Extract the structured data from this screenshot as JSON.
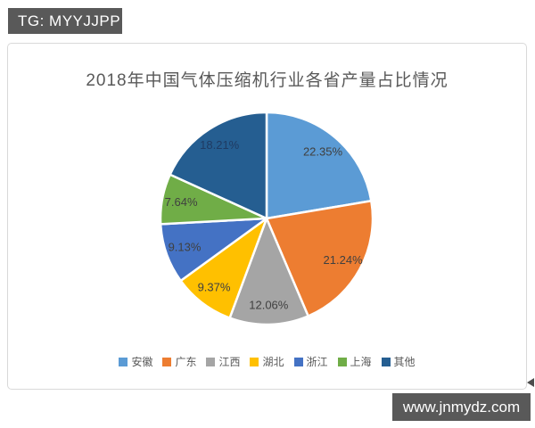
{
  "header": {
    "tag_label": "TG: MYYJJPP"
  },
  "footer": {
    "site_label": "www.jnmydz.com"
  },
  "colors": {
    "badge_background": "#595959",
    "badge_text": "#ffffff",
    "chart_border": "#d9d9d9",
    "title_text": "#595959",
    "legend_text": "#595959",
    "slice_label_text": "#404040",
    "slice_separator": "#ffffff"
  },
  "chart_data": {
    "type": "pie",
    "title": "2018年中国气体压缩机行业各省产量占比情况",
    "start_angle_deg": 0,
    "direction": "clockwise",
    "legend_position": "bottom",
    "categories": [
      "安徽",
      "广东",
      "江西",
      "湖北",
      "浙江",
      "上海",
      "其他"
    ],
    "values": [
      22.35,
      21.24,
      12.06,
      9.37,
      9.13,
      7.64,
      18.21
    ],
    "slices": [
      {
        "label": "安徽",
        "value": 22.35,
        "display": "22.35%",
        "color": "#5B9BD5"
      },
      {
        "label": "广东",
        "value": 21.24,
        "display": "21.24%",
        "color": "#ED7D31"
      },
      {
        "label": "江西",
        "value": 12.06,
        "display": "12.06%",
        "color": "#A5A5A5"
      },
      {
        "label": "湖北",
        "value": 9.37,
        "display": "9.37%",
        "color": "#FFC000"
      },
      {
        "label": "浙江",
        "value": 9.13,
        "display": "9.13%",
        "color": "#4472C4"
      },
      {
        "label": "上海",
        "value": 7.64,
        "display": "7.64%",
        "color": "#70AD47"
      },
      {
        "label": "其他",
        "value": 18.21,
        "display": "18.21%",
        "color": "#255E91",
        "label_color": "#1F3B63"
      }
    ]
  }
}
